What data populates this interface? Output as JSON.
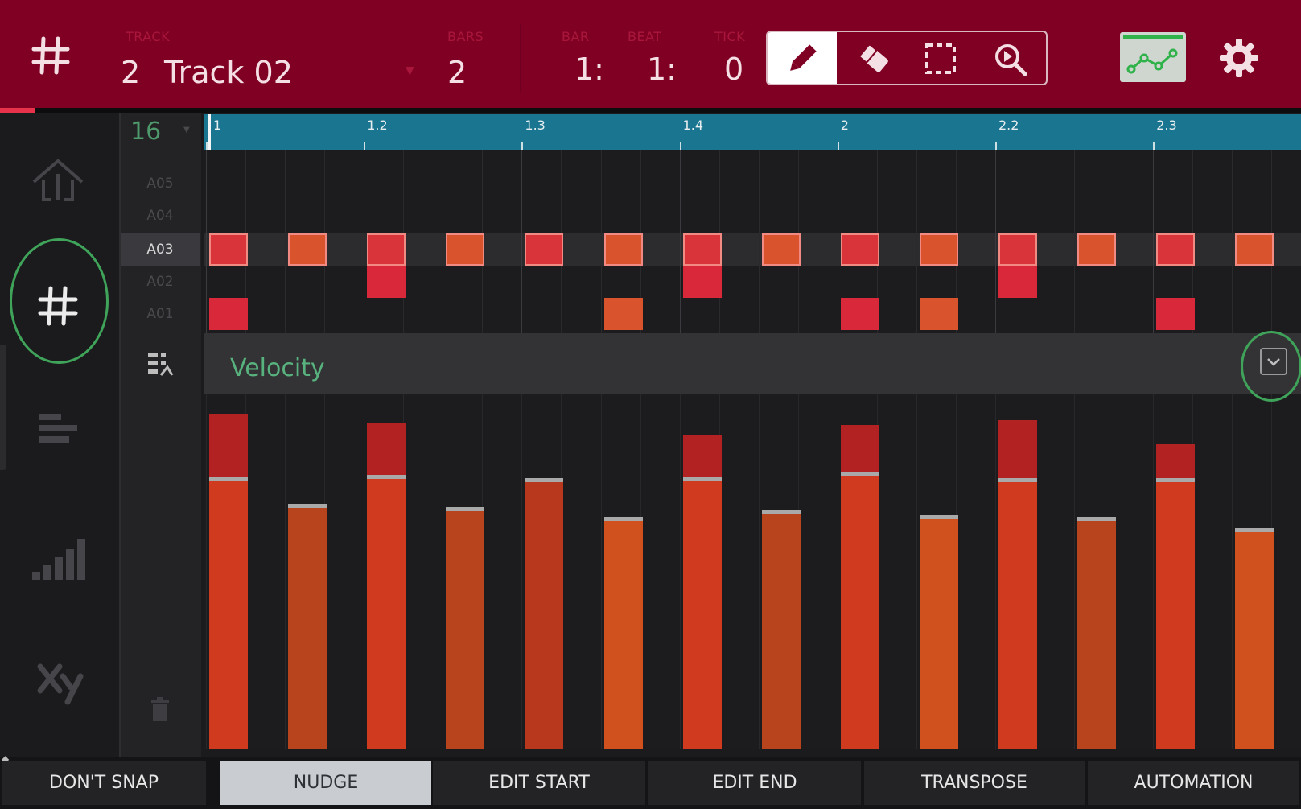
{
  "header": {
    "track_label": "TRACK",
    "track_number": "2",
    "track_name": "Track 02",
    "bars_label": "BARS",
    "bars_value": "2",
    "bar_label": "BAR",
    "bar_value": "1:",
    "beat_label": "BEAT",
    "beat_value": "1:",
    "tick_label": "TICK",
    "tick_value": "0",
    "tools": [
      "pencil-icon",
      "eraser-icon",
      "select-icon",
      "zoom-icon"
    ],
    "active_tool": "pencil-icon"
  },
  "grid": {
    "resolution": "16",
    "ruler_labels": [
      "1",
      "1.2",
      "1.3",
      "1.4",
      "2",
      "2.2",
      "2.3"
    ],
    "pads": [
      "A05",
      "A04",
      "A03",
      "A02",
      "A01"
    ],
    "selected_pad": "A03"
  },
  "velocity": {
    "lane_title": "Velocity"
  },
  "bottom": {
    "buttons": [
      "DON'T SNAP",
      "NUDGE",
      "EDIT START",
      "EDIT END",
      "TRANSPOSE",
      "AUTOMATION"
    ],
    "active_button": "NUDGE"
  },
  "colors": {
    "header_bg": "#800024",
    "ruler_bg": "#1a7590",
    "accent_green": "#58b27e",
    "note_red": "#d8283a",
    "note_orange": "#d9542c"
  }
}
